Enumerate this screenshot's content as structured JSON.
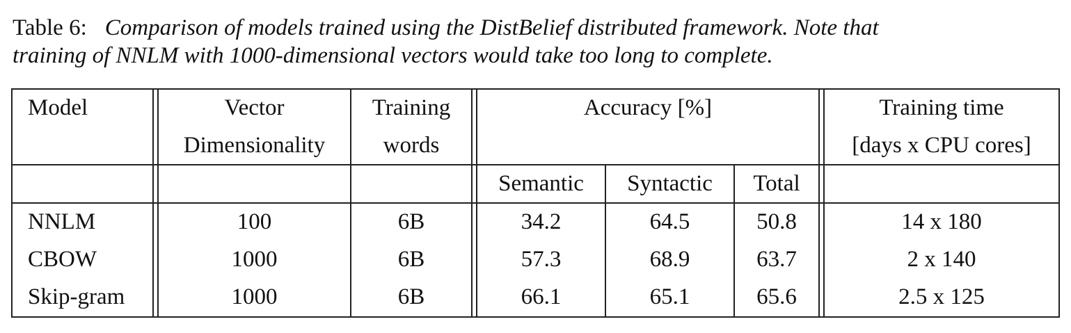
{
  "caption": {
    "label": "Table 6:",
    "line1": "Comparison of models trained using the DistBelief distributed framework. Note that",
    "line2": "training of NNLM with 1000-dimensional vectors would take too long to complete."
  },
  "headers": {
    "model": "Model",
    "vector_1": "Vector",
    "vector_2": "Dimensionality",
    "training_1": "Training",
    "training_2": "words",
    "accuracy": "Accuracy [%]",
    "time_1": "Training time",
    "time_2": "[days x CPU cores]",
    "semantic": "Semantic",
    "syntactic": "Syntactic",
    "total": "Total"
  },
  "rows": [
    {
      "model": "NNLM",
      "dim": "100",
      "words": "6B",
      "semantic": "34.2",
      "syntactic": "64.5",
      "total": "50.8",
      "time": "14 x 180"
    },
    {
      "model": "CBOW",
      "dim": "1000",
      "words": "6B",
      "semantic": "57.3",
      "syntactic": "68.9",
      "total": "63.7",
      "time": "2 x 140"
    },
    {
      "model": "Skip-gram",
      "dim": "1000",
      "words": "6B",
      "semantic": "66.1",
      "syntactic": "65.1",
      "total": "65.6",
      "time": "2.5 x 125"
    }
  ]
}
